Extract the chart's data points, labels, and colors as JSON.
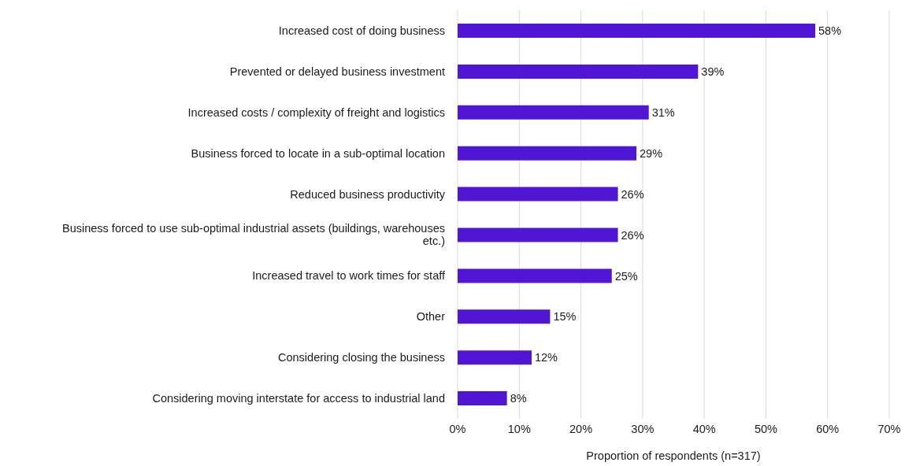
{
  "chart_data": {
    "type": "bar",
    "orientation": "horizontal",
    "xlabel": "Proportion of respondents (n=317)",
    "categories": [
      "Increased cost of doing business",
      "Prevented or delayed business investment",
      "Increased costs / complexity of freight and logistics",
      "Business forced to locate in a sub-optimal location",
      "Reduced business productivity",
      "Business forced to use sub-optimal industrial assets (buildings, warehouses etc.)",
      "Increased travel to work times for staff",
      "Other",
      "Considering closing the business",
      "Considering moving interstate for access to industrial land"
    ],
    "values": [
      58,
      39,
      31,
      29,
      26,
      26,
      25,
      15,
      12,
      8
    ],
    "value_labels": [
      "58%",
      "39%",
      "31%",
      "29%",
      "26%",
      "26%",
      "25%",
      "15%",
      "12%",
      "8%"
    ],
    "color": "#5016d4",
    "xlim": [
      0,
      70
    ],
    "xticks": [
      {
        "value": 0,
        "label": "0%"
      },
      {
        "value": 10,
        "label": "10%"
      },
      {
        "value": 20,
        "label": "20%"
      },
      {
        "value": 30,
        "label": "30%"
      },
      {
        "value": 40,
        "label": "40%"
      },
      {
        "value": 50,
        "label": "50%"
      },
      {
        "value": 60,
        "label": "60%"
      },
      {
        "value": 70,
        "label": "70%"
      }
    ],
    "grid": "x",
    "legend": false
  }
}
